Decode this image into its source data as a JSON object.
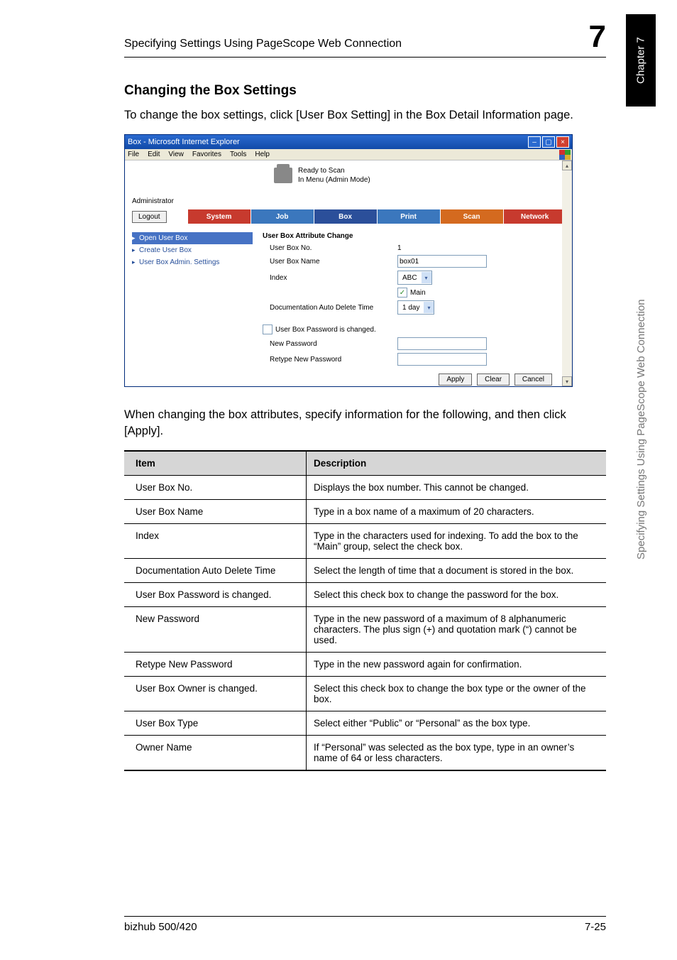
{
  "header": {
    "left_text": "Specifying Settings Using PageScope Web Connection",
    "big_number": "7"
  },
  "side_tab": {
    "black_label": "Chapter 7",
    "gray_label": "Specifying Settings Using PageScope Web Connection"
  },
  "section_title": "Changing the Box Settings",
  "intro_paragraph": "To change the box settings, click [User Box Setting] in the Box Detail Information page.",
  "after_image_paragraph": "When changing the box attributes, specify information for the following, and then click [Apply].",
  "browser": {
    "titlebar_text": "Box - Microsoft Internet Explorer",
    "menubar_items": [
      "File",
      "Edit",
      "View",
      "Favorites",
      "Tools",
      "Help"
    ],
    "flag_colors": [
      "#d03030",
      "#30a030",
      "#3060c0",
      "#d8b030"
    ],
    "printer_line1": "Ready to Scan",
    "printer_line2": "In Menu (Admin Mode)",
    "admin_label": "Administrator",
    "logout_label": "Logout",
    "tabs": [
      {
        "label": "System",
        "bg": "#c73a2e"
      },
      {
        "label": "Job",
        "bg": "#3b77bd"
      },
      {
        "label": "Box",
        "bg": "#2b4f9a"
      },
      {
        "label": "Print",
        "bg": "#3b77bd"
      },
      {
        "label": "Scan",
        "bg": "#d46a1f"
      },
      {
        "label": "Network",
        "bg": "#c73a2e"
      }
    ],
    "sidebar_items": [
      {
        "label": "Open User Box",
        "active": true
      },
      {
        "label": "Create User Box",
        "active": false
      },
      {
        "label": "User Box Admin. Settings",
        "active": false
      }
    ],
    "panel_title": "User Box Attribute Change",
    "rows": {
      "box_no": {
        "label": "User Box No.",
        "value": "1"
      },
      "box_name": {
        "label": "User Box Name",
        "value": "box01"
      },
      "index": {
        "label": "Index",
        "select": "ABC",
        "main_label": "Main"
      },
      "auto_delete": {
        "label": "Documentation Auto Delete Time",
        "select": "1 day"
      },
      "pw_changed": {
        "label": "User Box Password is changed."
      },
      "new_pw": {
        "label": "New Password"
      },
      "retype_pw": {
        "label": "Retype New Password"
      }
    },
    "buttons": {
      "apply": "Apply",
      "clear": "Clear",
      "cancel": "Cancel"
    }
  },
  "table": {
    "head_item": "Item",
    "head_desc": "Description",
    "rows": [
      {
        "item": "User Box No.",
        "desc": "Displays the box number. This cannot be changed."
      },
      {
        "item": "User Box Name",
        "desc": "Type in a box name of a maximum of 20 characters."
      },
      {
        "item": "Index",
        "desc": "Type in the characters used for indexing. To add the box to the “Main” group, select the check box."
      },
      {
        "item": "Documentation Auto Delete Time",
        "desc": "Select the length of time that a document is stored in the box."
      },
      {
        "item": "User Box Password is changed.",
        "desc": "Select this check box to change the password for the box."
      },
      {
        "item": "New Password",
        "desc": "Type in the new password of a maximum of 8 alphanumeric characters. The plus sign (+) and quotation mark (“) cannot be used."
      },
      {
        "item": "Retype New Password",
        "desc": "Type in the new password again for confirmation."
      },
      {
        "item": "User Box Owner is changed.",
        "desc": "Select this check box to change the box type or the owner of the box."
      },
      {
        "item": "User Box Type",
        "desc": "Select either “Public” or “Personal” as the box type."
      },
      {
        "item": "Owner Name",
        "desc": "If “Personal” was selected as the box type, type in an owner’s name of 64 or less characters."
      }
    ]
  },
  "footer": {
    "left": "bizhub 500/420",
    "right": "7-25"
  }
}
